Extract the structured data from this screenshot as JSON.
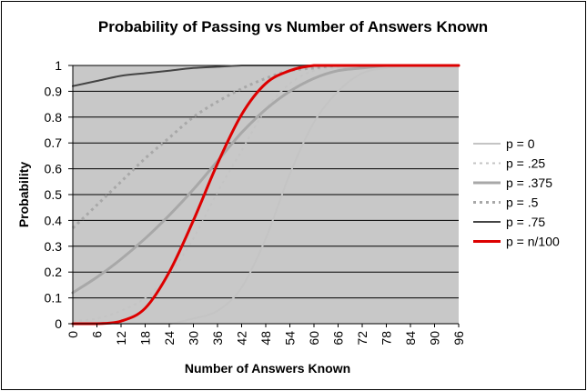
{
  "chart_data": {
    "type": "line",
    "title": "Probability of Passing vs Number of Answers Known",
    "xlabel": "Number of Answers Known",
    "ylabel": "Probability",
    "xlim": [
      0,
      96
    ],
    "ylim": [
      0,
      1
    ],
    "x_ticks": [
      "0",
      "6",
      "12",
      "18",
      "24",
      "30",
      "36",
      "42",
      "48",
      "54",
      "60",
      "66",
      "72",
      "78",
      "84",
      "90",
      "96"
    ],
    "y_ticks": [
      "0",
      "0.1",
      "0.2",
      "0.3",
      "0.4",
      "0.5",
      "0.6",
      "0.7",
      "0.8",
      "0.9",
      "1"
    ],
    "grid": "horizontal",
    "legend_position": "right",
    "plot_background": "#c8c8c8",
    "x": [
      0,
      6,
      12,
      18,
      24,
      30,
      36,
      42,
      48,
      54,
      60,
      66,
      72,
      78,
      84,
      90,
      96
    ],
    "series": [
      {
        "name": "p = 0",
        "color": "#c4c4c4",
        "dash": "solid",
        "width": 2,
        "values": [
          0,
          0,
          0,
          0,
          0,
          0.02,
          0.05,
          0.14,
          0.33,
          0.58,
          0.78,
          0.9,
          0.97,
          0.99,
          1,
          1,
          1
        ]
      },
      {
        "name": "p = .25",
        "color": "#c4c4c4",
        "dash": "dashed",
        "width": 2,
        "values": [
          0.01,
          0.02,
          0.05,
          0.1,
          0.19,
          0.33,
          0.51,
          0.67,
          0.83,
          0.93,
          0.98,
          0.99,
          1,
          1,
          1,
          1,
          1
        ]
      },
      {
        "name": "p = .375",
        "color": "#a8a8a8",
        "dash": "solid",
        "width": 3,
        "values": [
          0.12,
          0.18,
          0.25,
          0.33,
          0.42,
          0.52,
          0.63,
          0.74,
          0.83,
          0.9,
          0.95,
          0.98,
          0.99,
          1,
          1,
          1,
          1
        ]
      },
      {
        "name": "p = .5",
        "color": "#a8a8a8",
        "dash": "dashed",
        "width": 3,
        "values": [
          0.37,
          0.46,
          0.55,
          0.64,
          0.72,
          0.8,
          0.86,
          0.91,
          0.95,
          0.98,
          0.99,
          1,
          1,
          1,
          1,
          1,
          1
        ]
      },
      {
        "name": "p = .75",
        "color": "#444444",
        "dash": "solid",
        "width": 2,
        "values": [
          0.92,
          0.94,
          0.96,
          0.97,
          0.98,
          0.99,
          0.995,
          1,
          1,
          1,
          1,
          1,
          1,
          1,
          1,
          1,
          1
        ]
      },
      {
        "name": "p = n/100",
        "color": "#dd0000",
        "dash": "solid",
        "width": 3,
        "values": [
          0,
          0,
          0.01,
          0.06,
          0.2,
          0.4,
          0.62,
          0.81,
          0.93,
          0.98,
          1,
          1,
          1,
          1,
          1,
          1,
          1
        ]
      }
    ]
  }
}
